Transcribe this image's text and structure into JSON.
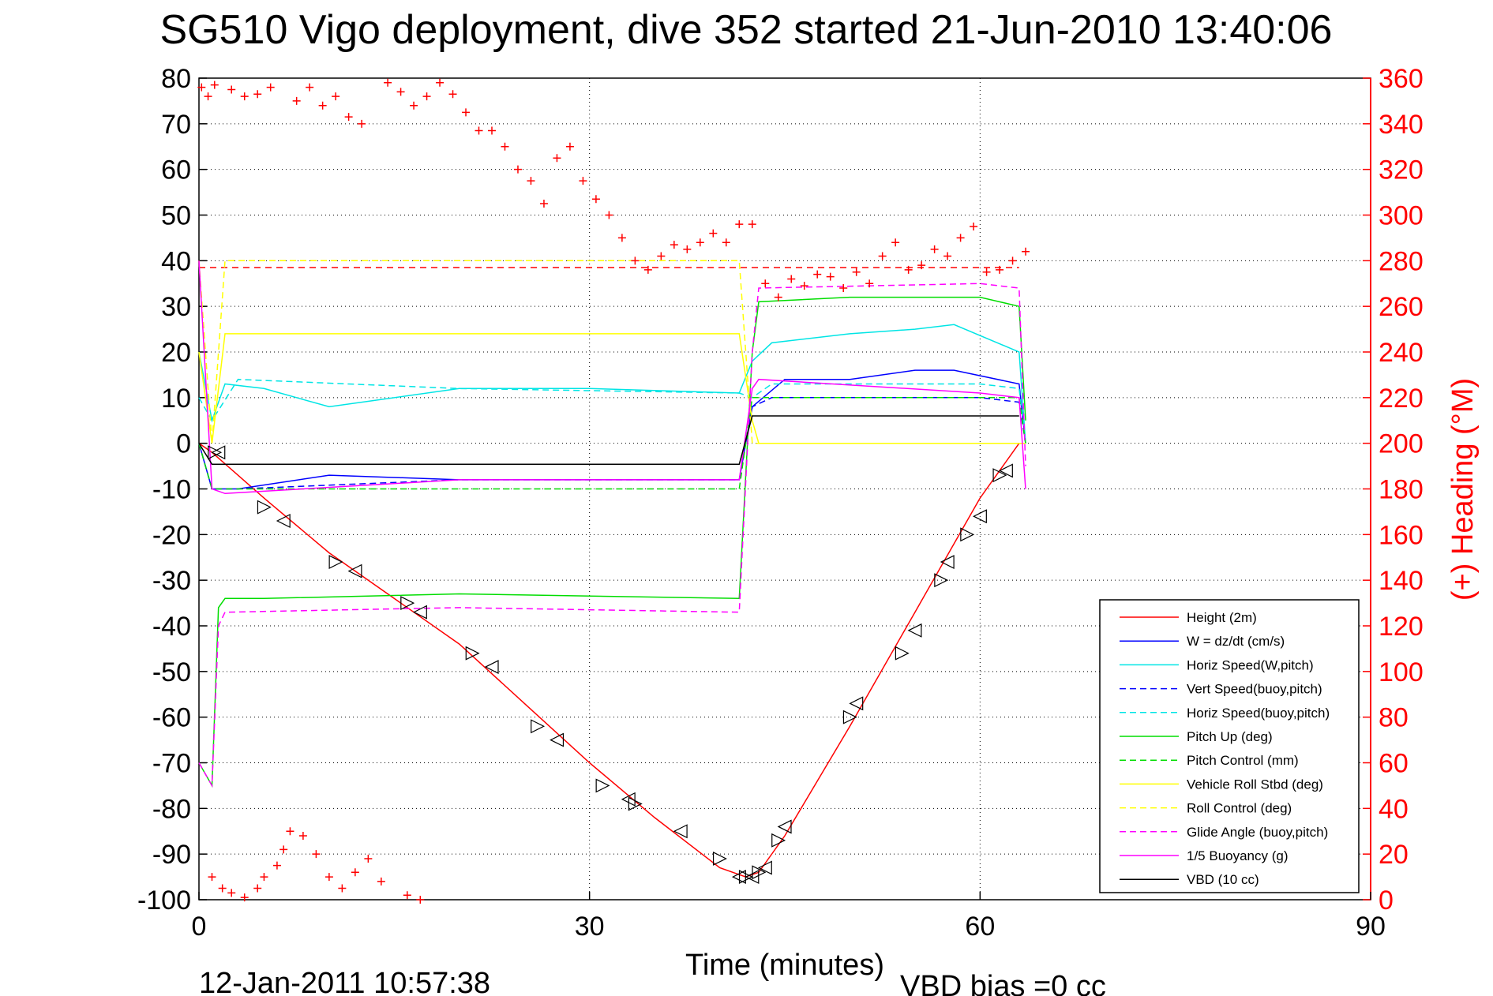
{
  "chart_data": {
    "type": "line",
    "title": "SG510 Vigo deployment, dive 352 started 21-Jun-2010 13:40:06",
    "xlabel": "Time (minutes)",
    "ylabel": "",
    "ylabel_right": "(+) Heading (°M)",
    "xlim": [
      0,
      90
    ],
    "ylim": [
      -100,
      80
    ],
    "ylim_right": [
      0,
      360
    ],
    "xticks": [
      "0",
      "30",
      "60",
      "90"
    ],
    "yticks_left": [
      "80",
      "70",
      "60",
      "50",
      "40",
      "30",
      "20",
      "10",
      "0",
      "-10",
      "-20",
      "-30",
      "-40",
      "-50",
      "-60",
      "-70",
      "-80",
      "-90",
      "-100"
    ],
    "yticks_right": [
      "360",
      "340",
      "320",
      "300",
      "280",
      "260",
      "240",
      "220",
      "200",
      "180",
      "160",
      "140",
      "120",
      "100",
      "80",
      "60",
      "40",
      "20",
      "0"
    ],
    "grid": true,
    "legend_position": "bottom-right",
    "footer_left": "12-Jan-2011 10:57:38",
    "footer_right": "VBD bias =0 cc",
    "series": [
      {
        "name": "Height (2m)",
        "color": "#ff0000",
        "style": "solid",
        "x": [
          0,
          1,
          5,
          10,
          15,
          20,
          25,
          30,
          35,
          40,
          42,
          43,
          45,
          50,
          55,
          60,
          63
        ],
        "y": [
          0,
          -2,
          -12,
          -24,
          -34,
          -44,
          -57,
          -70,
          -82,
          -93,
          -95,
          -94,
          -86,
          -62,
          -37,
          -12,
          0
        ]
      },
      {
        "name": "W = dz/dt (cm/s)",
        "color": "#0000ff",
        "style": "solid",
        "x": [
          0,
          1,
          3,
          10,
          20,
          30,
          41.5,
          42.5,
          45,
          50,
          55,
          58,
          63,
          63.5
        ],
        "y": [
          0,
          -10,
          -10,
          -7,
          -8,
          -8,
          -8,
          8,
          14,
          14,
          16,
          16,
          13,
          0
        ]
      },
      {
        "name": "Horiz Speed(W,pitch)",
        "color": "#00e5e5",
        "style": "solid",
        "x": [
          0,
          1,
          2,
          5,
          10,
          20,
          30,
          41.5,
          42.5,
          44,
          50,
          55,
          58,
          63,
          63.5
        ],
        "y": [
          20,
          5,
          13,
          12,
          8,
          12,
          12,
          11,
          18,
          22,
          24,
          25,
          26,
          20,
          0
        ]
      },
      {
        "name": "Vert Speed(buoy,pitch)",
        "color": "#0000ff",
        "style": "dashed",
        "x": [
          0,
          1,
          3,
          20,
          41.5,
          42.5,
          44,
          60,
          63,
          63.5
        ],
        "y": [
          0,
          -10,
          -10,
          -8,
          -8,
          8,
          10,
          10,
          9,
          0
        ]
      },
      {
        "name": "Horiz Speed(buoy,pitch)",
        "color": "#00e5e5",
        "style": "dashed",
        "x": [
          0,
          1,
          3,
          20,
          41.5,
          42.5,
          44,
          60,
          63,
          63.5
        ],
        "y": [
          10,
          5,
          14,
          12,
          11,
          10,
          13,
          13,
          12,
          0
        ]
      },
      {
        "name": "Pitch Up (deg)",
        "color": "#00dd00",
        "style": "solid",
        "x": [
          0,
          1,
          1.5,
          2,
          5,
          20,
          41.5,
          42.5,
          43,
          50,
          60,
          63,
          63.5
        ],
        "y": [
          -70,
          -75,
          -36,
          -34,
          -34,
          -33,
          -34,
          20,
          31,
          32,
          32,
          30,
          5
        ]
      },
      {
        "name": "Pitch Control (mm)",
        "color": "#00dd00",
        "style": "dashed",
        "x": [
          0,
          1,
          2,
          41.5,
          42.5,
          63,
          63.5
        ],
        "y": [
          0,
          -10,
          -10,
          -10,
          10,
          10,
          0
        ]
      },
      {
        "name": "Vehicle Roll Stbd (deg)",
        "color": "#ffff00",
        "style": "solid",
        "x": [
          0,
          1,
          2,
          5,
          20,
          41.5,
          42.5,
          43,
          50,
          60,
          63,
          63.5
        ],
        "y": [
          20,
          0,
          24,
          24,
          24,
          24,
          5,
          0,
          0,
          0,
          0,
          0
        ]
      },
      {
        "name": "Roll Control (deg)",
        "color": "#ffff00",
        "style": "dashed",
        "x": [
          0,
          1,
          2,
          20,
          41.5,
          42.5,
          63
        ],
        "y": [
          40,
          0,
          40,
          40,
          40,
          0,
          0
        ]
      },
      {
        "name": "Glide Angle (buoy,pitch)",
        "color": "#ff00ff",
        "style": "dashed",
        "x": [
          0,
          1,
          1.5,
          2,
          20,
          41.5,
          42.5,
          43,
          60,
          63,
          63.5
        ],
        "y": [
          -70,
          -75,
          -40,
          -37,
          -36,
          -37,
          20,
          34,
          35,
          34,
          -5
        ]
      },
      {
        "name": "1/5 Buoyancy (g)",
        "color": "#ff00ff",
        "style": "solid",
        "x": [
          0,
          1,
          2,
          20,
          41.5,
          42.5,
          43,
          60,
          63,
          63.5
        ],
        "y": [
          40,
          -10,
          -11,
          -8,
          -8,
          12,
          14,
          11,
          10,
          -10
        ]
      },
      {
        "name": "VBD (10 cc)",
        "color": "#000000",
        "style": "solid",
        "x": [
          0,
          1,
          2,
          41.5,
          42.5,
          63
        ],
        "y": [
          0,
          -4.6,
          -4.6,
          -4.6,
          6,
          6
        ]
      }
    ],
    "reference_line": {
      "color": "#ff0000",
      "style": "dashed",
      "x": [
        0,
        63
      ],
      "y_right": [
        277,
        277
      ]
    },
    "heading_points": {
      "color": "#ff0000",
      "marker": "+",
      "axis": "right",
      "x": [
        0.2,
        0.7,
        1.2,
        2.5,
        3.5,
        4.5,
        5.5,
        7.5,
        8.5,
        9.5,
        10.5,
        11.5,
        12.5,
        14.5,
        15.5,
        16.5,
        17.5,
        18.5,
        19.5,
        20.5,
        21.5,
        22.5,
        23.5,
        24.5,
        25.5,
        26.5,
        27.5,
        28.5,
        29.5,
        30.5,
        31.5,
        32.5,
        33.5,
        34.5,
        35.5,
        36.5,
        37.5,
        38.5,
        39.5,
        40.5,
        41.5,
        42.5,
        43.5,
        44.5,
        45.5,
        46.5,
        47.5,
        48.5,
        49.5,
        50.5,
        51.5,
        52.5,
        53.5,
        54.5,
        55.5,
        56.5,
        57.5,
        58.5,
        59.5,
        60.5,
        61.5,
        62.5,
        63.5,
        1.0,
        1.8,
        2.5,
        3.5,
        4.5,
        5.0,
        6.0,
        6.5,
        7.0,
        8.0,
        9.0,
        10.0,
        11.0,
        12.0,
        13.0,
        14.0,
        16.0,
        17.0
      ],
      "y": [
        356,
        352,
        357,
        355,
        352,
        353,
        356,
        350,
        356,
        348,
        352,
        343,
        340,
        358,
        354,
        348,
        352,
        358,
        353,
        345,
        337,
        337,
        330,
        320,
        315,
        305,
        325,
        330,
        315,
        307,
        300,
        290,
        280,
        276,
        282,
        287,
        285,
        288,
        292,
        288,
        296,
        296,
        270,
        264,
        272,
        269,
        274,
        273,
        268,
        275,
        270,
        282,
        288,
        276,
        278,
        285,
        282,
        290,
        295,
        275,
        276,
        280,
        284,
        10,
        5,
        3,
        1,
        5,
        10,
        15,
        22,
        30,
        28,
        20,
        10,
        5,
        12,
        18,
        8,
        2,
        0
      ]
    },
    "triangle_markers": {
      "color": "#000000",
      "x": [
        1.2,
        1.5,
        5,
        6.5,
        10.5,
        12,
        16,
        17,
        21,
        22.5,
        26,
        27.5,
        31,
        33,
        33.5,
        37,
        40,
        41.5,
        42,
        42.5,
        43,
        43.5,
        44.5,
        45,
        50,
        50.5,
        54,
        55,
        57,
        57.5,
        59,
        60,
        61.5,
        62
      ],
      "y": [
        -2,
        -2,
        -14,
        -17,
        -26,
        -28,
        -35,
        -37,
        -46,
        -49,
        -62,
        -65,
        -75,
        -78,
        -79,
        -85,
        -91,
        -95,
        -95,
        -95,
        -94,
        -93,
        -87,
        -84,
        -60,
        -57,
        -46,
        -41,
        -30,
        -26,
        -20,
        -16,
        -7,
        -6
      ]
    }
  }
}
